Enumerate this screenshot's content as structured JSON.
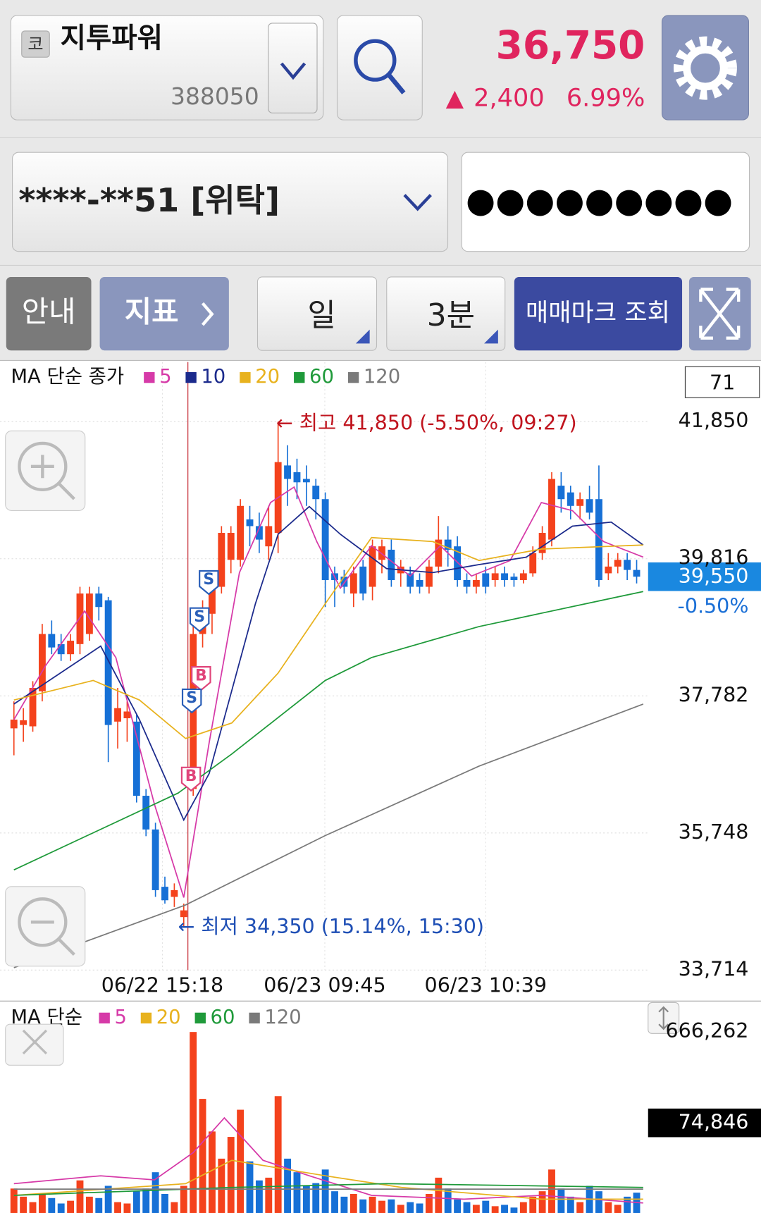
{
  "header": {
    "market_badge": "코",
    "stock_name": "지투파워",
    "stock_code": "388050",
    "price": "36,750",
    "change_arrow": "▲",
    "change": "2,400",
    "change_rate": "6.99%"
  },
  "account": {
    "number": "****-**51 [위탁]",
    "password": "●●●●●●●●●"
  },
  "toolbar": [
    "안내",
    "지표",
    "일",
    "3분",
    "매매마크 조회"
  ],
  "chart_data": [
    {
      "type": "candlestick",
      "legend_title": "MA 단순 종가",
      "period_box": "71",
      "up_color": "#f4421c",
      "down_color": "#1670d6",
      "candles": [
        [
          37300,
          37700,
          36900,
          37430
        ],
        [
          37350,
          37600,
          37100,
          37420
        ],
        [
          37330,
          38000,
          37250,
          37900
        ],
        [
          37850,
          38850,
          37700,
          38700
        ],
        [
          38700,
          38900,
          38400,
          38500
        ],
        [
          38550,
          38700,
          38300,
          38400
        ],
        [
          38400,
          38700,
          38300,
          38600
        ],
        [
          38550,
          39400,
          38400,
          39300
        ],
        [
          38700,
          39400,
          38600,
          39300
        ],
        [
          39300,
          39400,
          38900,
          39100
        ],
        [
          39200,
          39250,
          36800,
          37350
        ],
        [
          37400,
          37900,
          37000,
          37600
        ],
        [
          37450,
          37700,
          37100,
          37550
        ],
        [
          37400,
          37500,
          36200,
          36300
        ],
        [
          36300,
          36400,
          35700,
          35800
        ],
        [
          35800,
          35900,
          34800,
          34900
        ],
        [
          34950,
          35100,
          34700,
          34750
        ],
        [
          34800,
          35000,
          34650,
          34900
        ],
        [
          34500,
          34700,
          34350,
          34600
        ],
        [
          36400,
          38900,
          36300,
          38700
        ],
        [
          38700,
          39200,
          38500,
          39000
        ],
        [
          39000,
          39600,
          38700,
          39500
        ],
        [
          39400,
          40300,
          39300,
          40200
        ],
        [
          39800,
          40300,
          39600,
          40200
        ],
        [
          39800,
          40700,
          39700,
          40600
        ],
        [
          40400,
          40600,
          40000,
          40300
        ],
        [
          40300,
          40500,
          39900,
          40100
        ],
        [
          40000,
          40600,
          39800,
          40300
        ],
        [
          40200,
          41850,
          39900,
          41250
        ],
        [
          41200,
          41500,
          40600,
          41000
        ],
        [
          41100,
          41300,
          40700,
          40950
        ],
        [
          41000,
          41200,
          40600,
          40950
        ],
        [
          40900,
          41000,
          40400,
          40700
        ],
        [
          40700,
          40800,
          39100,
          39500
        ],
        [
          39600,
          39700,
          39100,
          39500
        ],
        [
          39550,
          39650,
          39300,
          39400
        ],
        [
          39300,
          39700,
          39100,
          39600
        ],
        [
          39700,
          39800,
          39200,
          39300
        ],
        [
          39400,
          40100,
          39200,
          40000
        ],
        [
          39800,
          40100,
          39600,
          40000
        ],
        [
          39950,
          40100,
          39400,
          39500
        ],
        [
          39600,
          39800,
          39400,
          39700
        ],
        [
          39600,
          39700,
          39300,
          39400
        ],
        [
          39500,
          39600,
          39300,
          39400
        ],
        [
          39400,
          39800,
          39300,
          39700
        ],
        [
          39700,
          40450,
          39600,
          40100
        ],
        [
          40100,
          40300,
          39700,
          39950
        ],
        [
          40000,
          40150,
          39400,
          39500
        ],
        [
          39500,
          39600,
          39300,
          39400
        ],
        [
          39400,
          39600,
          39300,
          39500
        ],
        [
          39600,
          39700,
          39300,
          39400
        ],
        [
          39500,
          39700,
          39400,
          39600
        ],
        [
          39600,
          39700,
          39400,
          39500
        ],
        [
          39550,
          39600,
          39400,
          39500
        ],
        [
          39500,
          39650,
          39450,
          39600
        ],
        [
          39600,
          40000,
          39550,
          39900
        ],
        [
          39900,
          40300,
          39800,
          40200
        ],
        [
          40100,
          41100,
          40000,
          41000
        ],
        [
          40900,
          41100,
          40500,
          40700
        ],
        [
          40800,
          40900,
          40400,
          40600
        ],
        [
          40600,
          40800,
          40400,
          40700
        ],
        [
          40700,
          40900,
          40400,
          40500
        ],
        [
          40700,
          41200,
          39400,
          39500
        ],
        [
          39600,
          39900,
          39500,
          39700
        ],
        [
          39700,
          39900,
          39600,
          39800
        ],
        [
          39800,
          39900,
          39500,
          39650
        ],
        [
          39650,
          39800,
          39450,
          39550
        ]
      ],
      "ylim": [
        33714,
        42734
      ],
      "yticks": [
        {
          "value": 33714,
          "label": "33,714"
        },
        {
          "value": 35748,
          "label": "35,748"
        },
        {
          "value": 37782,
          "label": "37,782"
        },
        {
          "value": 39816,
          "label": "39,816"
        },
        {
          "value": 41850,
          "label": "41,850"
        }
      ],
      "x_labels": [
        "06/22 15:18",
        "06/23 09:45",
        "06/23 10:39"
      ],
      "series": [
        {
          "name": "5",
          "color": "#d63aa8",
          "x": [
            0,
            3.4,
            7.5,
            10.8,
            14.9,
            18,
            20.7,
            23.9,
            27.2,
            29.7,
            32.1,
            34.6,
            37.9,
            42,
            45.2,
            48.5,
            52.6,
            55.9,
            59.2,
            62.5,
            66.7
          ],
          "values": [
            37430,
            38240,
            39040,
            38350,
            36170,
            34790,
            37090,
            39610,
            40650,
            40880,
            40070,
            39380,
            40010,
            39560,
            40010,
            39560,
            39790,
            40650,
            40530,
            40070,
            39840
          ]
        },
        {
          "name": "10",
          "color": "#1b2a8c",
          "x": [
            0,
            9.2,
            13.3,
            18,
            20.7,
            25.6,
            28,
            31.3,
            34.6,
            39.5,
            44.4,
            49.3,
            54.3,
            59.2,
            63.3,
            66.7
          ],
          "values": [
            37660,
            38520,
            37430,
            35940,
            36630,
            39150,
            40180,
            40590,
            40180,
            39670,
            39610,
            39730,
            39840,
            40300,
            40360,
            40020
          ]
        },
        {
          "name": "20",
          "color": "#e8b21e",
          "x": [
            0,
            8.4,
            13.3,
            18.2,
            23.1,
            28,
            33,
            37.9,
            44.4,
            49.3,
            55.9,
            66.7
          ],
          "values": [
            37720,
            38010,
            37720,
            37150,
            37380,
            38120,
            39150,
            40130,
            40070,
            39790,
            39960,
            40020
          ]
        },
        {
          "name": "60",
          "color": "#1f9a3a",
          "x": [
            0,
            17.4,
            23.1,
            33,
            37.9,
            49.3,
            66.7
          ],
          "values": [
            35200,
            36340,
            36920,
            38010,
            38350,
            38810,
            39330
          ]
        },
        {
          "name": "120",
          "color": "#7a7a7a",
          "x": [
            0,
            18.2,
            33,
            49.3,
            66.7
          ],
          "values": [
            33750,
            34680,
            35710,
            36740,
            37660
          ]
        }
      ],
      "current_price": 39550,
      "current_price_label": "39,550",
      "current_change": "-0.50%",
      "annotations": [
        "← 최고 41,850 (-5.50%, 09:27)",
        "← 최저 34,350 (15.14%, 15:30)"
      ],
      "trade_marks": [
        "S",
        "S",
        "B",
        "S",
        "B"
      ]
    },
    {
      "type": "bar",
      "legend_title": "MA 단순",
      "values": [
        90000,
        60000,
        40000,
        70000,
        55000,
        35000,
        45000,
        120000,
        60000,
        55000,
        100000,
        40000,
        35000,
        80000,
        90000,
        150000,
        70000,
        40000,
        100000,
        666262,
        420000,
        300000,
        200000,
        280000,
        380000,
        190000,
        120000,
        130000,
        430000,
        200000,
        150000,
        100000,
        110000,
        160000,
        80000,
        60000,
        70000,
        50000,
        60000,
        45000,
        50000,
        30000,
        40000,
        35000,
        70000,
        130000,
        90000,
        50000,
        40000,
        30000,
        45000,
        25000,
        30000,
        20000,
        40000,
        60000,
        80000,
        160000,
        90000,
        60000,
        40000,
        100000,
        80000,
        40000,
        30000,
        60000,
        74846
      ],
      "ylim": [
        0,
        666262
      ],
      "yticks": [
        {
          "value": 666262,
          "label": "666,262"
        }
      ],
      "current_volume": 74846,
      "current_volume_label": "74,846",
      "series": [
        {
          "name": "5",
          "color": "#d63aa8",
          "x": [
            0,
            9.2,
            14.9,
            19,
            22.3,
            26.4,
            31.3,
            37.9,
            47.7,
            55.9,
            66.7
          ],
          "values": [
            108000,
            137000,
            122000,
            222000,
            350000,
            194000,
            137000,
            65000,
            51000,
            65000,
            37000
          ]
        },
        {
          "name": "20",
          "color": "#e8b21e",
          "x": [
            0,
            18.2,
            23.1,
            33,
            41.1,
            55.9,
            66.7
          ],
          "values": [
            65000,
            108000,
            194000,
            137000,
            94000,
            51000,
            51000
          ]
        },
        {
          "name": "60",
          "color": "#1f9a3a",
          "x": [
            0,
            23.1,
            39.5,
            66.7
          ],
          "values": [
            65000,
            94000,
            108000,
            94000
          ]
        },
        {
          "name": "120",
          "color": "#7a7a7a",
          "x": [
            0,
            66.7
          ],
          "values": [
            88000,
            88000
          ]
        }
      ]
    }
  ]
}
